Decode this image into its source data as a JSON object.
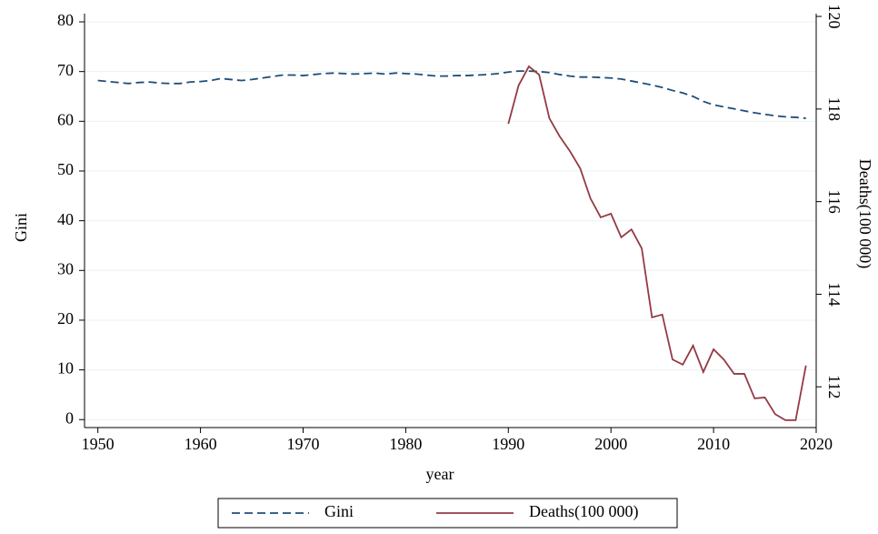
{
  "chart_data": {
    "type": "line",
    "x_label": "year",
    "y_label": "Gini",
    "y2_label": "Deaths(100 000)",
    "x": [
      1950,
      1951,
      1952,
      1953,
      1954,
      1955,
      1956,
      1957,
      1958,
      1959,
      1960,
      1961,
      1962,
      1963,
      1964,
      1965,
      1966,
      1967,
      1968,
      1969,
      1970,
      1971,
      1972,
      1973,
      1974,
      1975,
      1976,
      1977,
      1978,
      1979,
      1980,
      1981,
      1982,
      1983,
      1984,
      1985,
      1986,
      1987,
      1988,
      1989,
      1990,
      1991,
      1992,
      1993,
      1994,
      1995,
      1996,
      1997,
      1998,
      1999,
      2000,
      2001,
      2002,
      2003,
      2004,
      2005,
      2006,
      2007,
      2008,
      2009,
      2010,
      2011,
      2012,
      2013,
      2014,
      2015,
      2016,
      2017,
      2018,
      2019
    ],
    "series": [
      {
        "name": "Gini",
        "color": "#1f4e79",
        "dash": true,
        "values": [
          68.2,
          68.0,
          67.8,
          67.6,
          67.8,
          67.9,
          67.7,
          67.6,
          67.6,
          67.9,
          68.0,
          68.2,
          68.6,
          68.4,
          68.2,
          68.4,
          68.7,
          69.0,
          69.3,
          69.3,
          69.2,
          69.4,
          69.6,
          69.7,
          69.6,
          69.5,
          69.6,
          69.7,
          69.5,
          69.7,
          69.6,
          69.5,
          69.3,
          69.1,
          69.1,
          69.2,
          69.2,
          69.3,
          69.4,
          69.6,
          69.9,
          70.1,
          70.1,
          70.0,
          69.8,
          69.4,
          69.1,
          68.9,
          68.9,
          68.8,
          68.7,
          68.5,
          68.1,
          67.7,
          67.3,
          66.8,
          66.2,
          65.7,
          65.0,
          64.0,
          63.3,
          62.9,
          62.5,
          62.1,
          61.7,
          61.4,
          61.1,
          60.9,
          60.8,
          60.6
        ]
      },
      {
        "name": "Deaths(100 000)",
        "color": "#943a44",
        "dash": false,
        "axis": "y2",
        "values": [
          null,
          null,
          null,
          null,
          null,
          null,
          null,
          null,
          null,
          null,
          null,
          null,
          null,
          null,
          null,
          null,
          null,
          null,
          null,
          null,
          null,
          null,
          null,
          null,
          null,
          null,
          null,
          null,
          null,
          null,
          null,
          null,
          null,
          null,
          null,
          null,
          null,
          null,
          null,
          null,
          117.68,
          118.51,
          118.92,
          118.74,
          117.8,
          117.41,
          117.09,
          116.72,
          116.07,
          115.66,
          115.74,
          115.23,
          115.4,
          114.99,
          113.5,
          113.56,
          112.59,
          112.48,
          112.89,
          112.32,
          112.81,
          112.59,
          112.28,
          112.28,
          111.75,
          111.77,
          111.41,
          111.28,
          111.28,
          112.46
        ]
      }
    ],
    "xlim": [
      1948.7,
      2020
    ],
    "xticks": [
      1950,
      1960,
      1970,
      1980,
      1990,
      2000,
      2010,
      2020
    ],
    "ylim": [
      -1.6,
      81.65
    ],
    "yticks": [
      0,
      10,
      20,
      30,
      40,
      50,
      60,
      70,
      80
    ],
    "y2lim": [
      111.12,
      120.06
    ],
    "y2ticks": [
      112,
      114,
      116,
      118,
      120
    ],
    "grid": true,
    "legend": "bottom"
  }
}
